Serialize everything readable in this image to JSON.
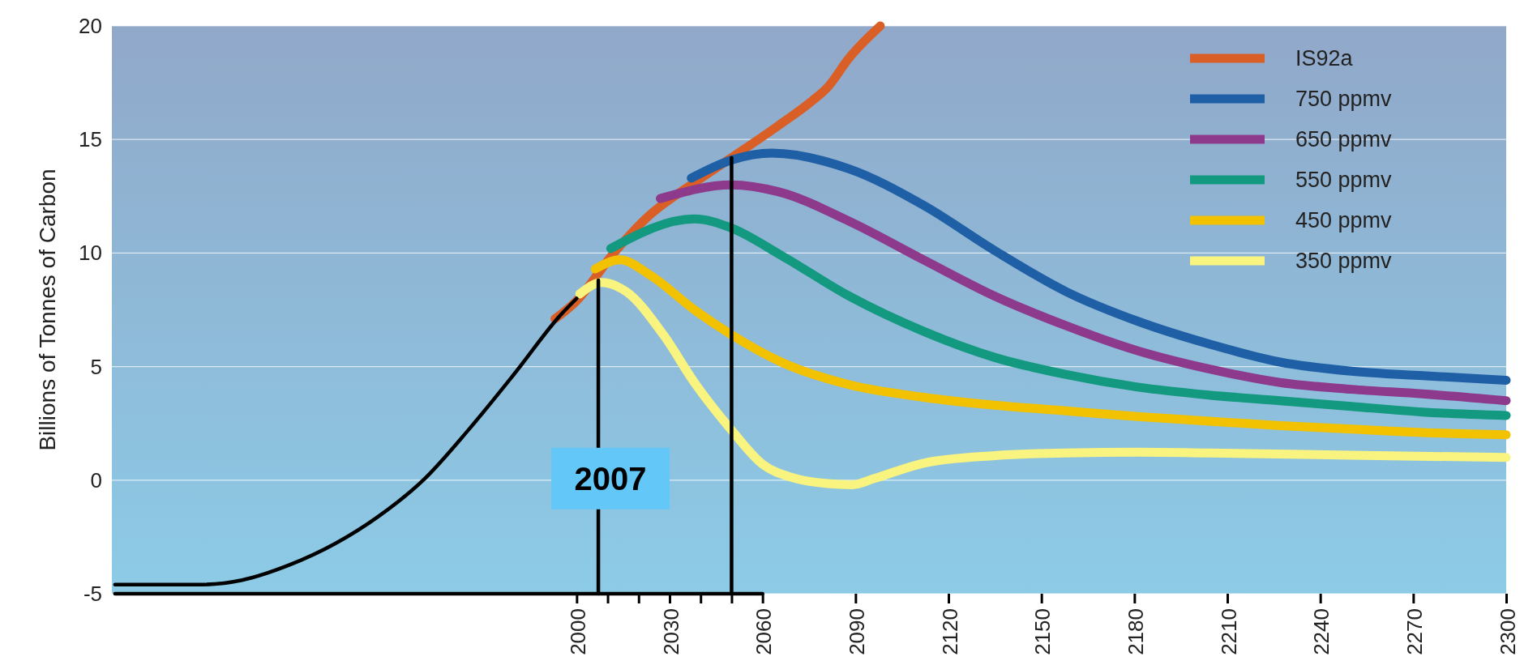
{
  "chart_data": {
    "type": "line",
    "ylabel": "Billions of Tonnes of Carbon",
    "xlim": [
      1850,
      2300
    ],
    "ylim": [
      -5,
      20
    ],
    "xticks": [
      2000,
      {
        "value": 2010,
        "label": null
      },
      {
        "value": 2020,
        "label": null
      },
      2030,
      {
        "value": 2040,
        "label": null
      },
      {
        "value": 2050,
        "label": null
      },
      2060,
      2090,
      2120,
      2150,
      2180,
      2210,
      2240,
      2270,
      2300
    ],
    "yticks": [
      -5,
      0,
      5,
      10,
      15,
      20
    ],
    "grid": "y",
    "legend": "top right",
    "marker": "none",
    "line_style": "solid",
    "annotations": [
      {
        "text": "2007",
        "x": 2007,
        "y": 0
      }
    ],
    "series": [
      {
        "name": "IS92a",
        "color": "#d95f26",
        "x": [
          1993,
          2000,
          2012,
          2023,
          2038,
          2050,
          2065,
          2076,
          2081,
          2088,
          2098
        ],
        "values": [
          7.1,
          7.9,
          10,
          11.6,
          13.1,
          14.2,
          15.6,
          16.7,
          17.3,
          18.6,
          20
        ]
      },
      {
        "name": "750 ppmv",
        "color": "#1f5fa6",
        "x": [
          2037,
          2050,
          2063,
          2088,
          2112,
          2135,
          2158,
          2181,
          2204,
          2227,
          2250,
          2273,
          2300
        ],
        "values": [
          13.3,
          14.1,
          14.4,
          13.7,
          12.1,
          10.1,
          8.3,
          7.0,
          6.0,
          5.2,
          4.8,
          4.6,
          4.4
        ]
      },
      {
        "name": "650 ppmv",
        "color": "#8e3a8c",
        "x": [
          2027,
          2050,
          2065,
          2088,
          2112,
          2135,
          2158,
          2181,
          2204,
          2227,
          2250,
          2273,
          2300
        ],
        "values": [
          12.4,
          13.0,
          12.7,
          11.4,
          9.7,
          8.1,
          6.8,
          5.7,
          4.9,
          4.3,
          4.0,
          3.8,
          3.5
        ]
      },
      {
        "name": "550 ppmv",
        "color": "#12997f",
        "x": [
          2011,
          2038,
          2050,
          2066,
          2088,
          2112,
          2135,
          2158,
          2181,
          2204,
          2227,
          2250,
          2273,
          2300
        ],
        "values": [
          10.2,
          11.5,
          11.1,
          9.9,
          8.1,
          6.55,
          5.4,
          4.65,
          4.1,
          3.75,
          3.5,
          3.25,
          3.0,
          2.85
        ]
      },
      {
        "name": "450 ppmv",
        "color": "#f2c200",
        "x": [
          2006,
          2014,
          2024,
          2038,
          2050,
          2066,
          2088,
          2112,
          2135,
          2158,
          2181,
          2204,
          2227,
          2250,
          2273,
          2300
        ],
        "values": [
          9.3,
          9.7,
          9.0,
          7.5,
          6.4,
          5.2,
          4.2,
          3.65,
          3.3,
          3.05,
          2.8,
          2.6,
          2.4,
          2.25,
          2.1,
          2.0
        ]
      },
      {
        "name": "350 ppmv",
        "color": "#f9f37f",
        "x": [
          2001,
          2008,
          2016,
          2028,
          2038,
          2050,
          2060,
          2070,
          2081,
          2089,
          2096,
          2112,
          2135,
          2158,
          2181,
          2204,
          2250,
          2300
        ],
        "values": [
          8.2,
          8.7,
          8.3,
          6.4,
          4.3,
          2.2,
          0.7,
          0.1,
          -0.15,
          -0.2,
          0.07,
          0.75,
          1.08,
          1.2,
          1.23,
          1.2,
          1.1,
          1.0
        ]
      },
      {
        "color": "#000000",
        "x": [
          1851,
          1878,
          1892,
          1907,
          1922,
          1936,
          1951,
          1965,
          1980,
          1995,
          2000
        ],
        "values": [
          -4.6,
          -4.6,
          -4.4,
          -3.75,
          -2.8,
          -1.6,
          0.07,
          2.2,
          4.7,
          7.3,
          8.0
        ]
      },
      {
        "color": "#000000",
        "x": [
          1851,
          2060
        ],
        "values": [
          -5,
          -5
        ]
      },
      {
        "color": "#000000",
        "x": [
          2007,
          2007
        ],
        "values": [
          -5,
          8.8
        ]
      },
      {
        "color": "#000000",
        "x": [
          2050,
          2050
        ],
        "values": [
          -5,
          14.2
        ]
      }
    ]
  }
}
